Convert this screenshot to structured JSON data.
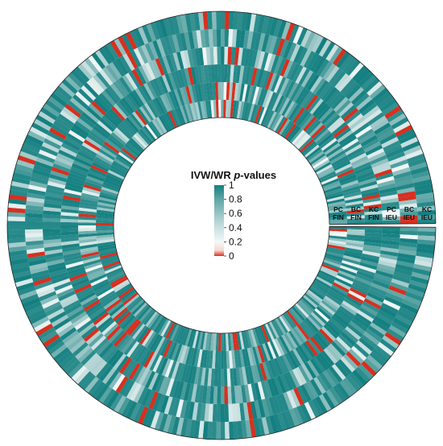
{
  "chart_data": {
    "type": "heatmap",
    "layout": "circular",
    "gap": "right-center",
    "tracks": [
      {
        "lines": [
          "KC",
          "IEU"
        ]
      },
      {
        "lines": [
          "BC",
          "IEU"
        ]
      },
      {
        "lines": [
          "PC",
          "IEU"
        ]
      },
      {
        "lines": [
          "KC",
          "FIN"
        ]
      },
      {
        "lines": [
          "BC",
          "FIN"
        ]
      },
      {
        "lines": [
          "PC",
          "FIN"
        ]
      }
    ],
    "legend": {
      "title_prefix": "IVW/WR ",
      "title_emph": "p",
      "title_suffix": "-values",
      "ticks": [
        1,
        0.8,
        0.6,
        0.4,
        0.2,
        0
      ],
      "tick_labels": [
        "1",
        "0.8",
        "0.6",
        "0.4",
        "0.2",
        "0"
      ],
      "value_range": [
        0,
        1
      ],
      "placement": "center"
    },
    "colors": {
      "high": "#137f80",
      "mid_high": "#5fa6a6",
      "mid": "#b3d3d3",
      "low": "#f3f8f8",
      "zero": "#d7301f"
    },
    "n_segments": 300
  }
}
